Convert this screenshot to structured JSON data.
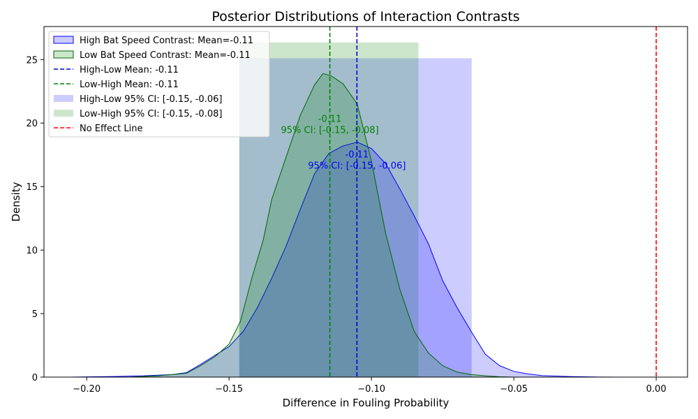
{
  "chart_data": {
    "type": "area",
    "title": "Posterior Distributions of Interaction Contrasts",
    "xlabel": "Difference in Fouling Probability",
    "ylabel": "Density",
    "xlim": [
      -0.215,
      0.011
    ],
    "ylim": [
      0,
      27.6
    ],
    "xticks": [
      -0.2,
      -0.15,
      -0.1,
      -0.05,
      0.0
    ],
    "xtick_labels": [
      "−0.20",
      "−0.15",
      "−0.10",
      "−0.05",
      "0.00"
    ],
    "yticks": [
      0,
      5,
      10,
      15,
      20,
      25
    ],
    "ytick_labels": [
      "0",
      "5",
      "10",
      "15",
      "20",
      "25"
    ],
    "grid": false,
    "legend_position": "top-left",
    "colors": {
      "high_fill": "#0000ff",
      "high_line": "#0000ff",
      "low_fill": "#008000",
      "low_line": "#006400",
      "high_mean_line": "#0000cd",
      "low_mean_line": "#008000",
      "no_effect_line": "#ff0000"
    },
    "series": [
      {
        "name": "High Bat Speed Contrast: Mean=-0.11",
        "kind": "density",
        "color": "#0000ff",
        "x": [
          -0.206,
          -0.19,
          -0.18,
          -0.17,
          -0.165,
          -0.16,
          -0.155,
          -0.15,
          -0.145,
          -0.14,
          -0.135,
          -0.13,
          -0.125,
          -0.12,
          -0.115,
          -0.11,
          -0.105,
          -0.1,
          -0.095,
          -0.09,
          -0.085,
          -0.08,
          -0.075,
          -0.07,
          -0.065,
          -0.06,
          -0.055,
          -0.05,
          -0.045,
          -0.04,
          -0.03,
          -0.02,
          -0.011
        ],
        "y": [
          0,
          0.05,
          0.1,
          0.2,
          0.35,
          1.0,
          1.7,
          2.4,
          3.6,
          5.5,
          7.8,
          10.3,
          13.2,
          16.0,
          17.6,
          18.2,
          18.5,
          18.0,
          16.8,
          14.8,
          12.7,
          10.5,
          7.6,
          5.5,
          3.6,
          1.8,
          0.9,
          0.45,
          0.25,
          0.12,
          0.04,
          0.01,
          0
        ]
      },
      {
        "name": "Low Bat Speed Contrast: Mean=-0.11",
        "kind": "density",
        "color": "#008000",
        "x": [
          -0.185,
          -0.175,
          -0.165,
          -0.16,
          -0.155,
          -0.15,
          -0.146,
          -0.142,
          -0.138,
          -0.135,
          -0.13,
          -0.125,
          -0.12,
          -0.117,
          -0.114,
          -0.11,
          -0.105,
          -0.1,
          -0.095,
          -0.09,
          -0.085,
          -0.08,
          -0.075,
          -0.07,
          -0.065,
          -0.06,
          -0.055,
          -0.05
        ],
        "y": [
          0,
          0.1,
          0.3,
          0.9,
          1.6,
          2.6,
          4.4,
          7.8,
          10.8,
          14.0,
          17.3,
          20.6,
          23.0,
          23.9,
          23.7,
          23.1,
          21.5,
          17.0,
          11.3,
          6.9,
          3.6,
          1.9,
          0.9,
          0.4,
          0.2,
          0.1,
          0.03,
          0
        ]
      }
    ],
    "mean_lines": [
      {
        "name": "High-Low Mean: -0.11",
        "x": -0.1051,
        "style": "dashed",
        "color": "#0000cd"
      },
      {
        "name": "Low-High Mean: -0.11",
        "x": -0.1146,
        "style": "dashed",
        "color": "#008000"
      }
    ],
    "ci_bands": [
      {
        "name": "High-Low 95% CI: [-0.15, -0.06]",
        "x0": -0.1464,
        "x1": -0.0648,
        "height": 25.1,
        "color": "#0000ff",
        "alpha": 0.2
      },
      {
        "name": "Low-High 95% CI: [-0.15, -0.08]",
        "x0": -0.1464,
        "x1": -0.0835,
        "height": 26.35,
        "color": "#008000",
        "alpha": 0.2
      }
    ],
    "reference_line": {
      "name": "No Effect Line",
      "x": 0.0,
      "style": "dashed",
      "color": "#ff0000"
    },
    "annotations": [
      {
        "lines": [
          "-0.11",
          "95% CI: [-0.15, -0.08]"
        ],
        "x": -0.1146,
        "y": 20.1,
        "color": "#008000"
      },
      {
        "lines": [
          "-0.11",
          "95% CI: [-0.15, -0.06]"
        ],
        "x": -0.1051,
        "y": 17.3,
        "color": "#0000ff"
      }
    ]
  }
}
